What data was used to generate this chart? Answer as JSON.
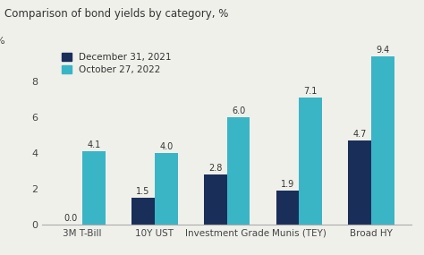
{
  "title": "Comparison of bond yields by category, %",
  "categories": [
    "3M T-Bill",
    "10Y UST",
    "Investment Grade",
    "Munis (TEY)",
    "Broad HY"
  ],
  "series": [
    {
      "label": "December 31, 2021",
      "color": "#1a2e5a",
      "values": [
        0.0,
        1.5,
        2.8,
        1.9,
        4.7
      ]
    },
    {
      "label": "October 27, 2022",
      "color": "#3ab5c6",
      "values": [
        4.1,
        4.0,
        6.0,
        7.1,
        9.4
      ]
    }
  ],
  "ylim": [
    0,
    10
  ],
  "yticks": [
    0,
    2,
    4,
    6,
    8
  ],
  "ytick_labels": [
    "0",
    "2",
    "4",
    "6",
    "8"
  ],
  "bar_width": 0.32,
  "background_color": "#f0f0eb",
  "title_fontsize": 8.5,
  "label_fontsize": 7.5,
  "tick_fontsize": 8,
  "value_fontsize": 7,
  "legend_fontsize": 7.5
}
